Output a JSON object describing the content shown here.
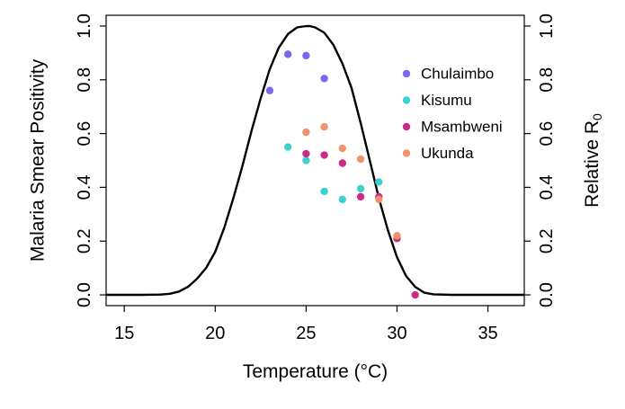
{
  "chart_data": {
    "type": "scatter",
    "xlabel": "Temperature (°C)",
    "ylabel_left": "Malaria Smear Positivity",
    "ylabel_right": "Relative R",
    "ylabel_right_sub": "0",
    "xlim": [
      14,
      37
    ],
    "ylim": [
      -0.04,
      1.04
    ],
    "xticks": [
      "15",
      "20",
      "25",
      "30",
      "35"
    ],
    "xtick_values": [
      15,
      20,
      25,
      30,
      35
    ],
    "yticks_left": [
      "0.0",
      "0.2",
      "0.4",
      "0.6",
      "0.8",
      "1.0"
    ],
    "yticks_right": [
      "0.0",
      "0.2",
      "0.4",
      "0.6",
      "0.8",
      "1.0"
    ],
    "ytick_values": [
      0.0,
      0.2,
      0.4,
      0.6,
      0.8,
      1.0
    ],
    "legend_position": "right",
    "series": [
      {
        "name": "Chulaimbo",
        "color": "#7b68ee",
        "points": [
          [
            23,
            0.76
          ],
          [
            24,
            0.895
          ],
          [
            25,
            0.89
          ],
          [
            26,
            0.805
          ]
        ]
      },
      {
        "name": "Kisumu",
        "color": "#3ecfcf",
        "points": [
          [
            24,
            0.55
          ],
          [
            25,
            0.5
          ],
          [
            26,
            0.385
          ],
          [
            27,
            0.355
          ],
          [
            28,
            0.395
          ],
          [
            29,
            0.42
          ]
        ]
      },
      {
        "name": "Msambweni",
        "color": "#cc2a8a",
        "points": [
          [
            25,
            0.525
          ],
          [
            26,
            0.52
          ],
          [
            27,
            0.49
          ],
          [
            28,
            0.365
          ],
          [
            29,
            0.365
          ],
          [
            30,
            0.21
          ],
          [
            31,
            0.0
          ]
        ]
      },
      {
        "name": "Ukunda",
        "color": "#f0926e",
        "points": [
          [
            25,
            0.605
          ],
          [
            26,
            0.625
          ],
          [
            27,
            0.545
          ],
          [
            28,
            0.505
          ],
          [
            29,
            0.355
          ],
          [
            30,
            0.22
          ]
        ]
      }
    ],
    "curve": {
      "type": "line",
      "color": "#000000",
      "peak_x": 25.2,
      "x": [
        14,
        15,
        16,
        17,
        17.5,
        18,
        18.5,
        19,
        19.5,
        20,
        20.5,
        21,
        21.5,
        22,
        22.5,
        23,
        23.5,
        24,
        24.5,
        25,
        25.2,
        25.5,
        26,
        26.5,
        27,
        27.5,
        28,
        28.5,
        29,
        29.5,
        30,
        30.5,
        31,
        31.5,
        32,
        33,
        34,
        35,
        36,
        37
      ],
      "y": [
        0,
        0,
        0,
        0.001,
        0.004,
        0.012,
        0.03,
        0.06,
        0.1,
        0.16,
        0.25,
        0.36,
        0.48,
        0.61,
        0.73,
        0.84,
        0.92,
        0.97,
        0.995,
        1.0,
        1.0,
        0.995,
        0.975,
        0.93,
        0.86,
        0.77,
        0.64,
        0.5,
        0.36,
        0.24,
        0.14,
        0.07,
        0.03,
        0.008,
        0.002,
        0,
        0,
        0,
        0,
        0
      ]
    }
  }
}
